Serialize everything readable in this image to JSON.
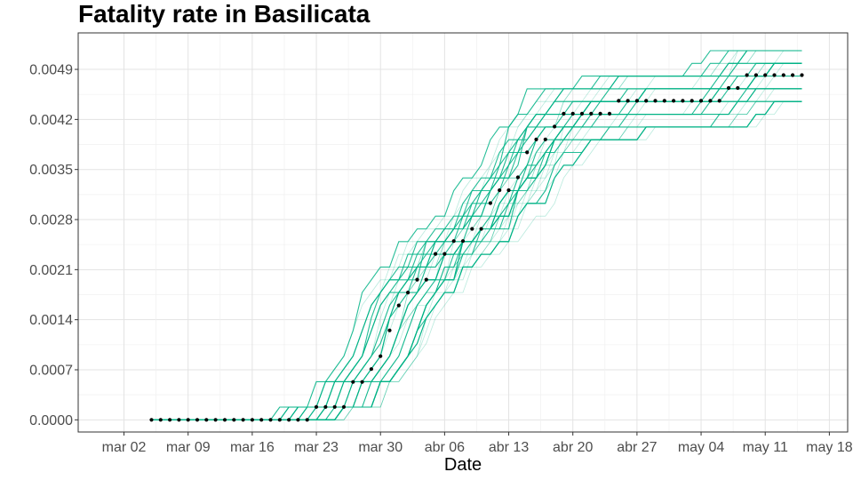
{
  "chart_data": {
    "type": "line",
    "title": "Fatality rate in  Basilicata",
    "xlabel": "Date",
    "ylabel": "",
    "x_tick_labels": [
      "mar 02",
      "mar 09",
      "mar 16",
      "mar 23",
      "mar 30",
      "abr 06",
      "abr 13",
      "abr 20",
      "abr 27",
      "may 04",
      "may 11",
      "may 18"
    ],
    "y_tick_labels": [
      "0.0000",
      "0.0007",
      "0.0014",
      "0.0021",
      "0.0028",
      "0.0035",
      "0.0042",
      "0.0049"
    ],
    "ylim": [
      -0.00017,
      0.00541
    ],
    "grid": true,
    "legend": "none",
    "observed_series": {
      "marker": "black-point",
      "points": [
        [
          "2020-03-05",
          0.0
        ],
        [
          "2020-03-06",
          0.0
        ],
        [
          "2020-03-07",
          0.0
        ],
        [
          "2020-03-08",
          0.0
        ],
        [
          "2020-03-09",
          0.0
        ],
        [
          "2020-03-10",
          0.0
        ],
        [
          "2020-03-11",
          0.0
        ],
        [
          "2020-03-12",
          0.0
        ],
        [
          "2020-03-13",
          0.0
        ],
        [
          "2020-03-14",
          0.0
        ],
        [
          "2020-03-15",
          0.0
        ],
        [
          "2020-03-16",
          0.0
        ],
        [
          "2020-03-17",
          0.0
        ],
        [
          "2020-03-18",
          0.0
        ],
        [
          "2020-03-19",
          0.0
        ],
        [
          "2020-03-20",
          0.0
        ],
        [
          "2020-03-21",
          0.0
        ],
        [
          "2020-03-22",
          0.0
        ],
        [
          "2020-03-23",
          0.00018
        ],
        [
          "2020-03-24",
          0.00018
        ],
        [
          "2020-03-25",
          0.00018
        ],
        [
          "2020-03-26",
          0.00018
        ],
        [
          "2020-03-27",
          0.00053
        ],
        [
          "2020-03-28",
          0.00053
        ],
        [
          "2020-03-29",
          0.00071
        ],
        [
          "2020-03-30",
          0.00089
        ],
        [
          "2020-03-31",
          0.00125
        ],
        [
          "2020-04-01",
          0.0016
        ],
        [
          "2020-04-02",
          0.00178
        ],
        [
          "2020-04-03",
          0.00196
        ],
        [
          "2020-04-04",
          0.00196
        ],
        [
          "2020-04-05",
          0.00232
        ],
        [
          "2020-04-06",
          0.00232
        ],
        [
          "2020-04-07",
          0.0025
        ],
        [
          "2020-04-08",
          0.0025
        ],
        [
          "2020-04-09",
          0.00267
        ],
        [
          "2020-04-10",
          0.00267
        ],
        [
          "2020-04-11",
          0.00303
        ],
        [
          "2020-04-12",
          0.00321
        ],
        [
          "2020-04-13",
          0.00321
        ],
        [
          "2020-04-14",
          0.00339
        ],
        [
          "2020-04-15",
          0.00374
        ],
        [
          "2020-04-16",
          0.00392
        ],
        [
          "2020-04-17",
          0.00392
        ],
        [
          "2020-04-18",
          0.0041
        ],
        [
          "2020-04-19",
          0.00428
        ],
        [
          "2020-04-20",
          0.00428
        ],
        [
          "2020-04-21",
          0.00428
        ],
        [
          "2020-04-22",
          0.00428
        ],
        [
          "2020-04-23",
          0.00428
        ],
        [
          "2020-04-24",
          0.00428
        ],
        [
          "2020-04-25",
          0.00446
        ],
        [
          "2020-04-26",
          0.00446
        ],
        [
          "2020-04-27",
          0.00446
        ],
        [
          "2020-04-28",
          0.00446
        ],
        [
          "2020-04-29",
          0.00446
        ],
        [
          "2020-04-30",
          0.00446
        ],
        [
          "2020-05-01",
          0.00446
        ],
        [
          "2020-05-02",
          0.00446
        ],
        [
          "2020-05-03",
          0.00446
        ],
        [
          "2020-05-04",
          0.00446
        ],
        [
          "2020-05-05",
          0.00446
        ],
        [
          "2020-05-06",
          0.00446
        ],
        [
          "2020-05-07",
          0.00464
        ],
        [
          "2020-05-08",
          0.00464
        ],
        [
          "2020-05-09",
          0.00482
        ],
        [
          "2020-05-10",
          0.00482
        ],
        [
          "2020-05-11",
          0.00482
        ],
        [
          "2020-05-12",
          0.00482
        ],
        [
          "2020-05-13",
          0.00482
        ],
        [
          "2020-05-14",
          0.00482
        ],
        [
          "2020-05-15",
          0.00482
        ]
      ]
    },
    "simulated_series": {
      "color": "#00b386",
      "count": 40,
      "first_date": "2020-03-05",
      "last_date": "2020-05-15"
    }
  }
}
